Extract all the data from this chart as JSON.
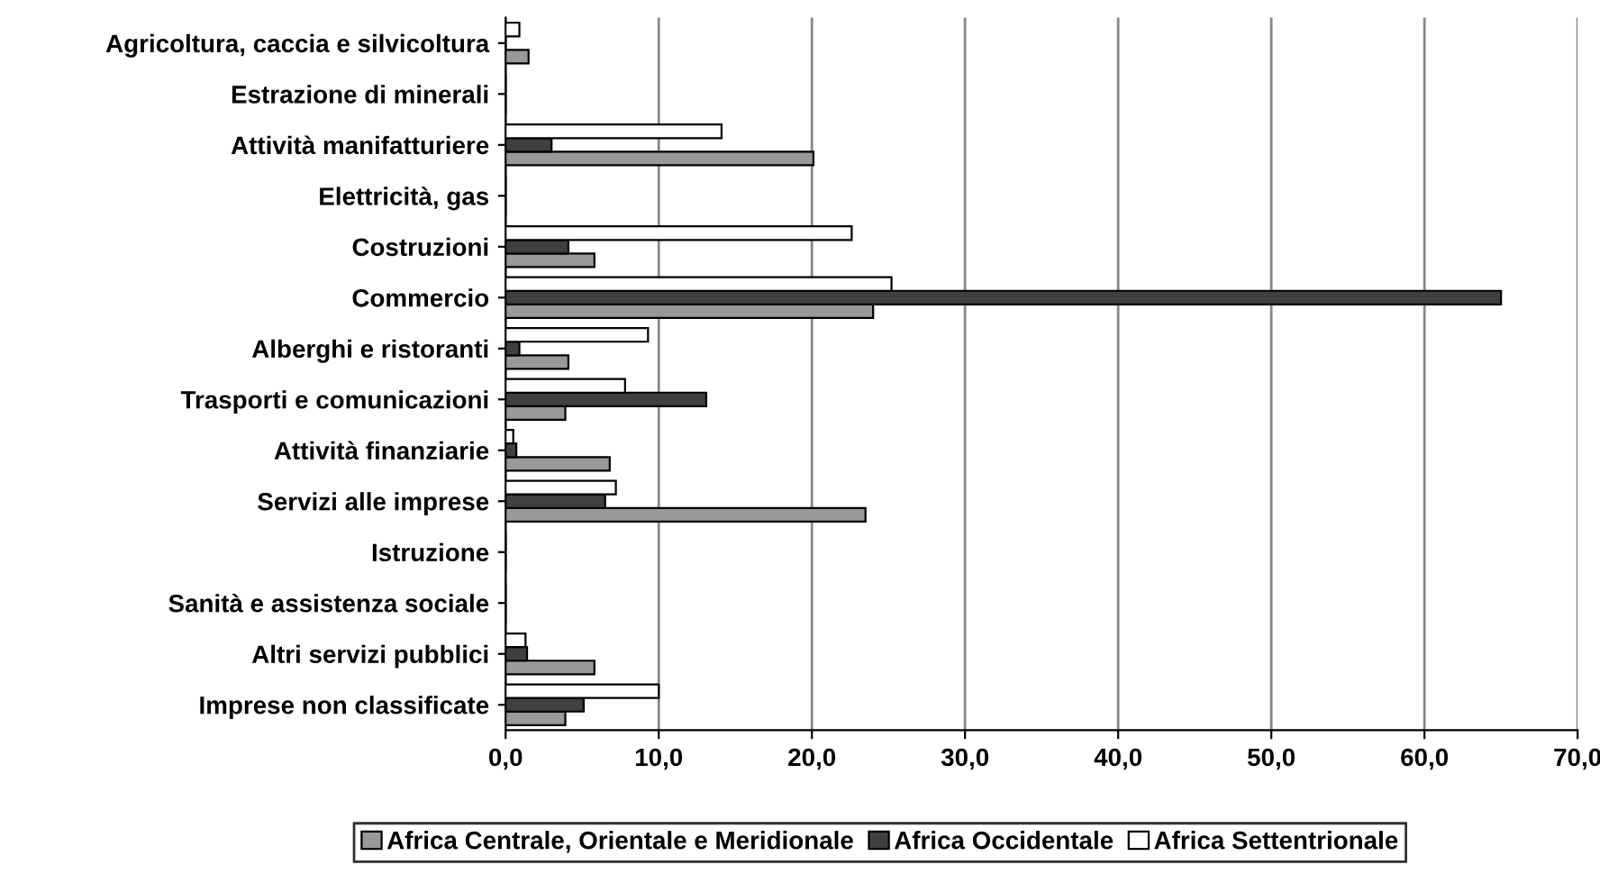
{
  "chart_data": {
    "type": "bar",
    "orientation": "horizontal",
    "categories": [
      "Agricoltura, caccia e silvicoltura",
      "Estrazione di minerali",
      "Attività manifatturiere",
      "Elettricità, gas",
      "Costruzioni",
      "Commercio",
      "Alberghi e ristoranti",
      "Trasporti e comunicazioni",
      "Attività finanziarie",
      "Servizi alle imprese",
      "Istruzione",
      "Sanità e assistenza sociale",
      "Altri servizi pubblici",
      "Imprese non classificate"
    ],
    "series": [
      {
        "name": "Africa Centrale, Orientale e Meridionale",
        "color": "#999999",
        "values": [
          1.5,
          0,
          20.1,
          0,
          5.8,
          24.0,
          4.1,
          3.9,
          6.8,
          23.5,
          0,
          0,
          5.8,
          3.9
        ]
      },
      {
        "name": "Africa Occidentale",
        "color": "#404040",
        "values": [
          0,
          0,
          3.0,
          0,
          4.1,
          65.0,
          0.9,
          13.1,
          0.7,
          6.5,
          0,
          0,
          1.4,
          5.1
        ]
      },
      {
        "name": "Africa Settentrionale",
        "color": "#ffffff",
        "values": [
          0.9,
          0,
          14.1,
          0,
          22.6,
          25.2,
          9.3,
          7.8,
          0.5,
          7.2,
          0,
          0,
          1.3,
          10.0
        ]
      }
    ],
    "xlim": [
      0,
      70
    ],
    "xticks": [
      {
        "value": 0,
        "label": "0,0"
      },
      {
        "value": 10,
        "label": "10,0"
      },
      {
        "value": 20,
        "label": "20,0"
      },
      {
        "value": 30,
        "label": "30,0"
      },
      {
        "value": 40,
        "label": "40,0"
      },
      {
        "value": 50,
        "label": "50,0"
      },
      {
        "value": 60,
        "label": "60,0"
      },
      {
        "value": 70,
        "label": "70,0"
      }
    ],
    "grid": "x",
    "legend": "bottom"
  }
}
